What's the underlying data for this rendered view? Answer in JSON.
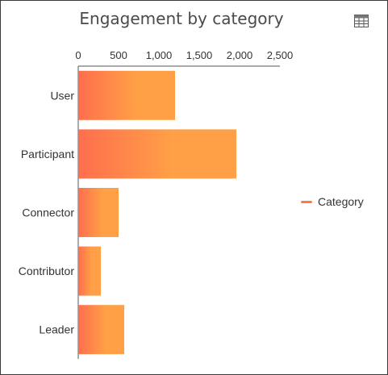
{
  "title": "Engagement by category",
  "table_icon": "table-icon",
  "legend": {
    "label": "Category"
  },
  "colors": {
    "bar_start": "#FF6E4E",
    "bar_mid": "#FFA046",
    "legend": "#FF7A45",
    "axis": "#555555",
    "text": "#333333"
  },
  "chart_data": {
    "type": "bar",
    "orientation": "horizontal",
    "title": "Engagement by category",
    "categories": [
      "User",
      "Participant",
      "Connector",
      "Contributor",
      "Leader"
    ],
    "series": [
      {
        "name": "Category",
        "values": [
          1200,
          1960,
          500,
          280,
          570
        ]
      }
    ],
    "xlim": [
      0,
      2500
    ],
    "x_ticks": [
      0,
      500,
      1000,
      1500,
      2000,
      2500
    ],
    "x_tick_labels": [
      "0",
      "500",
      "1,000",
      "1,500",
      "2,000",
      "2,500"
    ],
    "axis_position": "top",
    "grid": false,
    "legend_position": "right"
  }
}
